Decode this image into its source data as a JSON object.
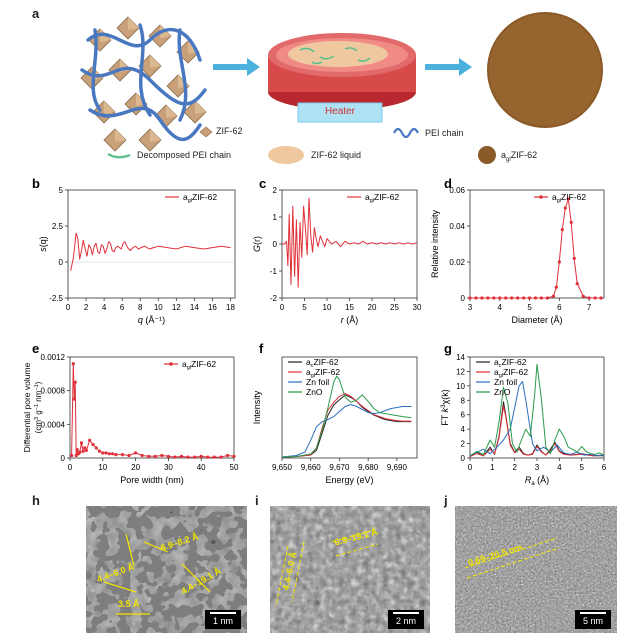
{
  "panels": {
    "a": {
      "label": "a",
      "heater_label": "Heater",
      "legend": {
        "zif62": "ZIF-62",
        "pei_chain": "PEI chain",
        "decomposed_pei": "Decomposed PEI chain",
        "zif62_liquid": "ZIF-62 liquid",
        "agl_zif62": "a",
        "agl_sub": "gl",
        "agl_suffix": "ZIF-62"
      },
      "colors": {
        "crystal": "#c8a07a",
        "pei": "#4a78c0",
        "decomposed": "#5cbf8c",
        "liquid": "#f0c8a0",
        "dish": "#d74a4a",
        "heater": "#aee2f5",
        "glass": "#8a5a28",
        "arrow": "#4cb0dc"
      }
    },
    "h": {
      "label": "h",
      "scale": "1 nm",
      "annotations": [
        "6.9–8.2 Å",
        "4.4–6.0 Å",
        "4.4–19.1 Å",
        "3.5 Å"
      ]
    },
    "i": {
      "label": "i",
      "scale": "2 nm",
      "annotations": [
        "6.9–19.1 Å",
        "4.4–6.0 Å"
      ]
    },
    "j": {
      "label": "j",
      "scale": "5 nm",
      "annotations": [
        "0.69–20.5 nm"
      ]
    }
  },
  "legend_sub": "gl",
  "chart_data": [
    {
      "id": "b",
      "label": "b",
      "type": "line",
      "series": [
        {
          "name": "agl ZIF-62",
          "name_prefix": "a",
          "name_sub": "gl",
          "name_suffix": "ZIF-62",
          "color": "#e0303a",
          "x": [
            0.3,
            0.6,
            0.9,
            1.1,
            1.3,
            1.5,
            1.7,
            1.9,
            2.1,
            2.3,
            2.5,
            2.7,
            2.9,
            3.1,
            3.3,
            3.5,
            3.7,
            3.9,
            4.1,
            4.3,
            4.5,
            4.7,
            4.9,
            5.1,
            5.3,
            5.5,
            5.7,
            5.9,
            6.1,
            6.3,
            6.6,
            6.9,
            7.2,
            7.5,
            7.8,
            8.1,
            8.5,
            9,
            9.5,
            10,
            11,
            12,
            13,
            14,
            15,
            16,
            17,
            18
          ],
          "y": [
            -0.6,
            0.3,
            2.0,
            1.6,
            0.2,
            0.8,
            1.5,
            0.9,
            0.4,
            1.2,
            1.0,
            0.5,
            1.1,
            1.3,
            0.7,
            0.6,
            1.2,
            1.1,
            0.6,
            0.9,
            1.4,
            1.3,
            0.8,
            0.7,
            1.0,
            1.1,
            1.0,
            0.9,
            1.3,
            1.4,
            1.0,
            0.8,
            1.0,
            1.1,
            0.9,
            1.0,
            1.1,
            0.9,
            1.0,
            1.1,
            1.0,
            0.9,
            1.1,
            1.0,
            0.9,
            1.0,
            1.1,
            1.0
          ]
        }
      ],
      "xlabel_var": "q",
      "xlabel_unit": " (Å⁻¹)",
      "ylabel": "s(q)",
      "xlim": [
        0,
        18.5
      ],
      "ylim": [
        -2.5,
        5
      ],
      "xticks": [
        0,
        2,
        4,
        6,
        8,
        10,
        12,
        14,
        16,
        18
      ],
      "yticks": [
        -2.5,
        0,
        2.5,
        5
      ]
    },
    {
      "id": "c",
      "label": "c",
      "type": "line",
      "series": [
        {
          "name": "agl ZIF-62",
          "name_prefix": "a",
          "name_sub": "gl",
          "name_suffix": "ZIF-62",
          "color": "#e0303a",
          "x": [
            0,
            0.5,
            1,
            1.3,
            1.6,
            2,
            2.4,
            2.8,
            3.2,
            3.6,
            4,
            4.4,
            4.8,
            5.2,
            5.6,
            6,
            6.4,
            6.8,
            7.2,
            7.6,
            8,
            8.5,
            9,
            9.5,
            10,
            11,
            12,
            13,
            14,
            15,
            16,
            17,
            18,
            19,
            20,
            21,
            22,
            23,
            24,
            25,
            26,
            27,
            28,
            29,
            30
          ],
          "y": [
            0,
            0,
            0.1,
            -0.8,
            1.1,
            -1.5,
            1.4,
            -1.2,
            0.9,
            -1.6,
            0.8,
            -0.5,
            1.4,
            0.6,
            -0.4,
            1.7,
            0.3,
            -0.3,
            0.6,
            0.2,
            -0.1,
            0.3,
            0.1,
            -0.1,
            0.2,
            0.0,
            0.1,
            -0.1,
            0.1,
            0.0,
            0.05,
            0.0,
            0.1,
            0.0,
            0.05,
            0.0,
            0.05,
            0.0,
            0.05,
            0.0,
            0.05,
            0.0,
            0.05,
            0.0,
            0.05
          ]
        }
      ],
      "xlabel_var": "r",
      "xlabel_unit": " (Å)",
      "ylabel": "G(r)",
      "xlim": [
        0,
        30
      ],
      "ylim": [
        -2,
        2
      ],
      "xticks": [
        0,
        5,
        10,
        15,
        20,
        25,
        30
      ],
      "yticks": [
        -2,
        -1,
        0,
        1,
        2
      ]
    },
    {
      "id": "d",
      "label": "d",
      "type": "line",
      "series": [
        {
          "name": "agl ZIF-62",
          "name_prefix": "a",
          "name_sub": "gl",
          "name_suffix": "ZIF-62",
          "color": "#e0303a",
          "x": [
            3,
            3.2,
            3.4,
            3.6,
            3.8,
            4,
            4.2,
            4.4,
            4.6,
            4.8,
            5,
            5.2,
            5.4,
            5.6,
            5.8,
            5.9,
            6.0,
            6.1,
            6.2,
            6.3,
            6.4,
            6.5,
            6.6,
            6.8,
            7,
            7.2,
            7.4
          ],
          "y": [
            0,
            0,
            0,
            0,
            0,
            0,
            0,
            0,
            0,
            0,
            0,
            0,
            0,
            0,
            0.001,
            0.006,
            0.02,
            0.038,
            0.05,
            0.055,
            0.042,
            0.022,
            0.008,
            0.001,
            0,
            0,
            0
          ]
        }
      ],
      "xlabel": "Diameter (Å)",
      "ylabel": "Relative intensity",
      "xlim": [
        3,
        7.5
      ],
      "ylim": [
        0,
        0.06
      ],
      "xticks": [
        3,
        4,
        5,
        6,
        7
      ],
      "yticks": [
        0,
        0.02,
        0.04,
        0.06
      ]
    },
    {
      "id": "e",
      "label": "e",
      "type": "line",
      "series": [
        {
          "name": "agl ZIF-62",
          "name_prefix": "a",
          "name_sub": "gl",
          "name_suffix": "ZIF-62",
          "color": "#e0303a",
          "x": [
            0.5,
            1,
            1.3,
            1.6,
            1.9,
            2.2,
            2.6,
            3,
            3.5,
            4,
            4.5,
            5,
            6,
            7,
            8,
            9,
            10,
            11,
            12,
            13,
            14,
            16,
            18,
            20,
            22,
            24,
            26,
            28,
            30,
            32,
            34,
            36,
            38,
            40,
            42,
            44,
            46,
            48,
            50
          ],
          "y": [
            3e-05,
            0.00112,
            0.0007,
            0.0009,
            3e-05,
            0.0001,
            5e-05,
            7e-05,
            0.00018,
            8e-05,
            0.00012,
            9e-05,
            0.00021,
            0.00016,
            0.00012,
            8e-05,
            6e-05,
            6e-05,
            5e-05,
            5e-05,
            4e-05,
            4e-05,
            3e-05,
            6e-05,
            3e-05,
            2e-05,
            2e-05,
            3e-05,
            2e-05,
            1e-05,
            2e-05,
            1e-05,
            1e-05,
            2e-05,
            1e-05,
            1e-05,
            1e-05,
            3e-05,
            2e-05
          ]
        }
      ],
      "xlabel": "Pore width (nm)",
      "ylabel_line1": "Differential pore volume",
      "ylabel_line2_pre": "(cm",
      "ylabel_line2_sup1": "3",
      "ylabel_line2_mid": " g",
      "ylabel_line2_sup2": "−1",
      "ylabel_line2_mid2": " nm",
      "ylabel_line2_sup3": "−1",
      "ylabel_line2_end": ")",
      "xlim": [
        0,
        50
      ],
      "ylim": [
        0,
        0.0012
      ],
      "xticks": [
        0,
        10,
        20,
        30,
        40,
        50
      ],
      "yticks": [
        0,
        0.0004,
        0.0008,
        0.0012
      ],
      "ytick_labels": [
        "0",
        "0.0004",
        "0.0008",
        "0.0012"
      ]
    },
    {
      "id": "f",
      "label": "f",
      "type": "line",
      "series": [
        {
          "name": "c ZIF-62",
          "name_prefix": "a",
          "name_sub": "c",
          "name_suffix": "ZIF-62",
          "color": "#222222",
          "x": [
            9650,
            9655,
            9660,
            9662,
            9664,
            9666,
            9668,
            9670,
            9672,
            9674,
            9676,
            9678,
            9680,
            9682,
            9684,
            9686,
            9688,
            9690,
            9692,
            9695
          ],
          "y": [
            0.02,
            0.03,
            0.06,
            0.15,
            0.5,
            0.85,
            1.05,
            1.15,
            1.25,
            1.2,
            1.12,
            1.0,
            0.92,
            0.85,
            0.8,
            0.76,
            0.74,
            0.72,
            0.72,
            0.72
          ]
        },
        {
          "name": "agl ZIF-62",
          "name_prefix": "a",
          "name_sub": "gl",
          "name_suffix": "ZIF-62",
          "color": "#e0303a",
          "x": [
            9650,
            9655,
            9660,
            9662,
            9664,
            9666,
            9668,
            9670,
            9672,
            9674,
            9676,
            9678,
            9680,
            9682,
            9684,
            9686,
            9688,
            9690,
            9692,
            9695
          ],
          "y": [
            0.02,
            0.03,
            0.06,
            0.2,
            0.6,
            0.95,
            1.1,
            1.22,
            1.28,
            1.22,
            1.12,
            1.02,
            0.94,
            0.86,
            0.82,
            0.78,
            0.76,
            0.74,
            0.73,
            0.73
          ]
        },
        {
          "name": "Zn foil",
          "color": "#2a6fc0",
          "x": [
            9650,
            9655,
            9658,
            9660,
            9662,
            9664,
            9666,
            9668,
            9670,
            9672,
            9674,
            9676,
            9678,
            9680,
            9682,
            9684,
            9686,
            9688,
            9690,
            9692,
            9695
          ],
          "y": [
            0.02,
            0.05,
            0.12,
            0.35,
            0.62,
            0.72,
            0.76,
            0.82,
            0.92,
            1.02,
            1.06,
            1.02,
            0.96,
            0.9,
            0.88,
            0.9,
            0.94,
            0.98,
            1.0,
            1.02,
            1.02
          ]
        },
        {
          "name": "ZnO",
          "color": "#2a9a4a",
          "x": [
            9650,
            9655,
            9660,
            9662,
            9664,
            9666,
            9668,
            9669,
            9670,
            9672,
            9674,
            9676,
            9678,
            9680,
            9682,
            9684,
            9686,
            9688,
            9690,
            9692,
            9695
          ],
          "y": [
            0.02,
            0.03,
            0.08,
            0.2,
            0.55,
            1.0,
            1.5,
            1.62,
            1.55,
            1.2,
            1.1,
            1.15,
            1.25,
            1.12,
            0.98,
            0.9,
            0.88,
            0.86,
            0.84,
            0.82,
            0.8
          ]
        }
      ],
      "xlabel": "Energy (eV)",
      "ylabel": "Intensity",
      "xlim": [
        9650,
        9697
      ],
      "ylim": [
        0,
        2
      ],
      "xticks": [
        9650,
        9660,
        9670,
        9680,
        9690
      ],
      "xtick_labels": [
        "9,650",
        "9,660",
        "9,670",
        "9,680",
        "9,690"
      ]
    },
    {
      "id": "g",
      "label": "g",
      "type": "line",
      "series": [
        {
          "name": "c ZIF-62",
          "name_prefix": "a",
          "name_sub": "c",
          "name_suffix": "ZIF-62",
          "color": "#222222",
          "x": [
            0,
            0.3,
            0.6,
            0.9,
            1.1,
            1.3,
            1.5,
            1.6,
            1.8,
            2.0,
            2.2,
            2.4,
            2.6,
            2.8,
            3.0,
            3.2,
            3.4,
            3.6,
            3.8,
            4.0,
            4.2,
            4.5,
            5,
            5.5,
            6
          ],
          "y": [
            0.2,
            0.8,
            0.3,
            1.5,
            0.5,
            3,
            7.8,
            6,
            2,
            0.8,
            1.5,
            0.6,
            0.4,
            0.6,
            1.8,
            0.9,
            0.4,
            1.2,
            2.2,
            1.0,
            0.6,
            0.4,
            0.6,
            0.3,
            0.4
          ]
        },
        {
          "name": "agl ZIF-62",
          "name_prefix": "a",
          "name_sub": "gl",
          "name_suffix": "ZIF-62",
          "color": "#e0303a",
          "x": [
            0,
            0.3,
            0.6,
            0.9,
            1.1,
            1.3,
            1.5,
            1.6,
            1.8,
            2.0,
            2.2,
            2.4,
            2.6,
            2.8,
            3.0,
            3.2,
            3.4,
            3.6,
            3.8,
            4.0,
            4.2,
            4.5,
            5,
            5.5,
            6
          ],
          "y": [
            0.2,
            0.6,
            0.3,
            1.2,
            0.6,
            2.8,
            7.2,
            5.8,
            1.8,
            0.7,
            1.2,
            0.5,
            0.4,
            0.5,
            1.6,
            0.8,
            0.4,
            1.0,
            2.0,
            0.9,
            0.5,
            0.4,
            0.5,
            0.3,
            0.3
          ]
        },
        {
          "name": "Zn foil",
          "color": "#2a6fc0",
          "x": [
            0,
            0.3,
            0.6,
            0.9,
            1.2,
            1.5,
            1.8,
            2.0,
            2.2,
            2.35,
            2.5,
            2.8,
            3.0,
            3.3,
            3.6,
            3.9,
            4.2,
            4.5,
            4.8,
            5.1,
            5.4,
            5.7,
            6
          ],
          "y": [
            0.3,
            0.8,
            1.2,
            0.6,
            1.5,
            2.5,
            4,
            7,
            10,
            10.6,
            8,
            2,
            1,
            1.5,
            0.8,
            1.8,
            0.7,
            0.5,
            0.8,
            0.4,
            0.5,
            0.3,
            0.3
          ]
        },
        {
          "name": "ZnO",
          "color": "#2a9a4a",
          "x": [
            0,
            0.3,
            0.6,
            0.9,
            1.1,
            1.3,
            1.5,
            1.7,
            1.9,
            2.1,
            2.3,
            2.5,
            2.7,
            2.9,
            3.0,
            3.2,
            3.4,
            3.6,
            3.8,
            4.0,
            4.2,
            4.4,
            4.6,
            4.8,
            5.0,
            5.2,
            5.4,
            5.6,
            5.8,
            6
          ],
          "y": [
            0.3,
            0.9,
            0.5,
            2.5,
            1.5,
            5,
            9.8,
            7.5,
            2,
            0.8,
            2.5,
            4,
            3,
            9,
            13,
            8,
            1.5,
            0.6,
            2.5,
            4,
            3,
            1.5,
            1.2,
            0.8,
            1.6,
            0.9,
            0.6,
            0.5,
            0.7,
            0.4
          ]
        }
      ],
      "xlabel_var": "R",
      "xlabel_sub": "a",
      "xlabel_unit": " (Å)",
      "ylabel_pre": "FT ",
      "ylabel_var": "k",
      "ylabel_sup": "3",
      "ylabel_post": "χ(k)",
      "xlim": [
        0,
        6
      ],
      "ylim": [
        0,
        14
      ],
      "xticks": [
        0,
        1,
        2,
        3,
        4,
        5,
        6
      ],
      "yticks": [
        0,
        2,
        4,
        6,
        8,
        10,
        12,
        14
      ]
    }
  ]
}
